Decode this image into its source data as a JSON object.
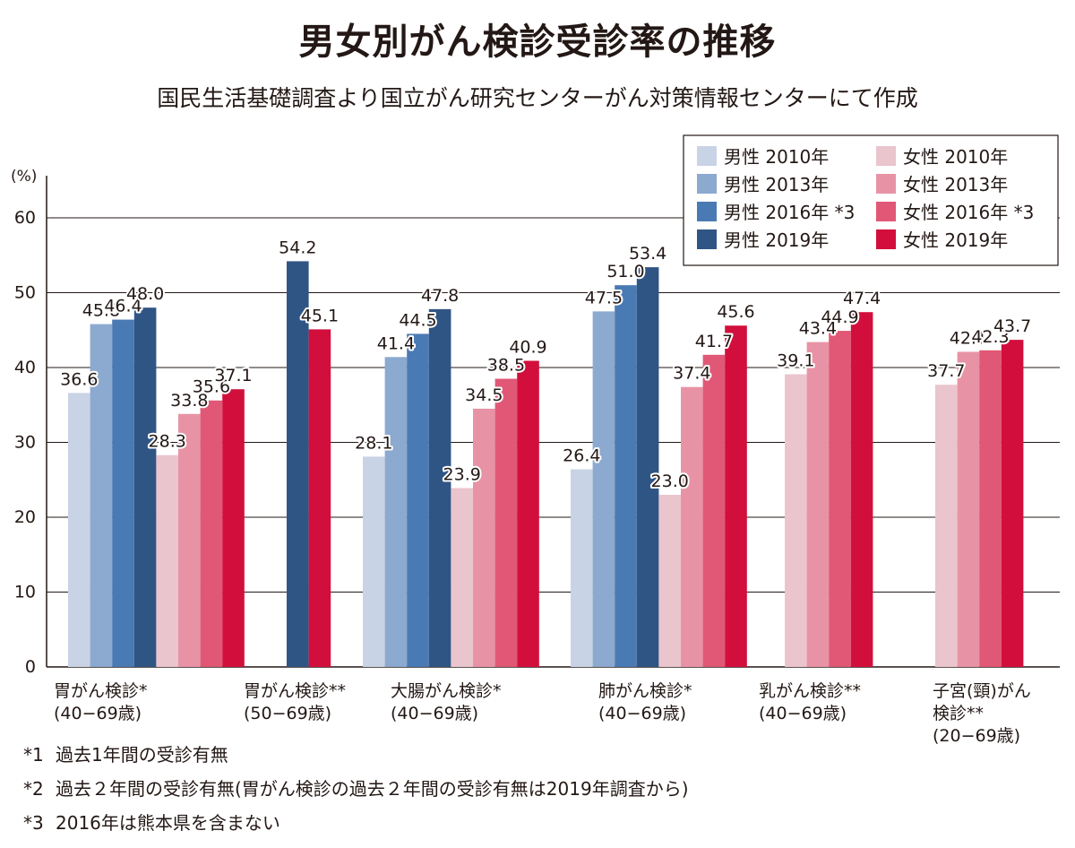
{
  "title": "男女別がん検診受診率の推移",
  "subtitle": "国民生活基礎調査より国立がん研究センターがん対策情報センターにて作成",
  "colors": {
    "male_2010": "#c9d3e6",
    "male_2013": "#8ca9d0",
    "male_2016": "#4a7ab4",
    "male_2019": "#2f5585",
    "female_2010": "#eac5cd",
    "female_2013": "#e893a5",
    "female_2016": "#e05875",
    "female_2019": "#d20f3c",
    "axis": "#231815",
    "grid": "#231815"
  },
  "chart_data": {
    "type": "bar",
    "ylabel": "(%)",
    "ylim": [
      0,
      65
    ],
    "yticks": [
      0,
      10,
      20,
      30,
      40,
      50,
      60
    ],
    "grid": true,
    "legend_position": "top-right",
    "categories": [
      {
        "line1": "胃がん検診*",
        "line2": "(40−69歳)",
        "line3": ""
      },
      {
        "line1": "胃がん検診**",
        "line2": "(50−69歳)",
        "line3": ""
      },
      {
        "line1": "大腸がん検診*",
        "line2": "(40−69歳)",
        "line3": ""
      },
      {
        "line1": "肺がん検診*",
        "line2": "(40−69歳)",
        "line3": ""
      },
      {
        "line1": "乳がん検診**",
        "line2": "(40−69歳)",
        "line3": ""
      },
      {
        "line1": "子宮(頸)がん",
        "line2": "検診**",
        "line3": "(20−69歳)"
      }
    ],
    "series": [
      {
        "name": "男性 2010年",
        "key": "male_2010",
        "values": [
          36.6,
          null,
          28.1,
          26.4,
          null,
          null
        ]
      },
      {
        "name": "男性 2013年",
        "key": "male_2013",
        "values": [
          45.8,
          null,
          41.4,
          47.5,
          null,
          null
        ]
      },
      {
        "name": "男性 2016年 *3",
        "key": "male_2016",
        "values": [
          46.4,
          null,
          44.5,
          51.0,
          null,
          null
        ]
      },
      {
        "name": "男性 2019年",
        "key": "male_2019",
        "values": [
          48.0,
          54.2,
          47.8,
          53.4,
          null,
          null
        ]
      },
      {
        "name": "女性 2010年",
        "key": "female_2010",
        "values": [
          28.3,
          null,
          23.9,
          23.0,
          39.1,
          37.7
        ]
      },
      {
        "name": "女性 2013年",
        "key": "female_2013",
        "values": [
          33.8,
          null,
          34.5,
          37.4,
          43.4,
          42.1
        ]
      },
      {
        "name": "女性 2016年 *3",
        "key": "female_2016",
        "values": [
          35.6,
          null,
          38.5,
          41.7,
          44.9,
          42.3
        ]
      },
      {
        "name": "女性 2019年",
        "key": "female_2019",
        "values": [
          37.1,
          45.1,
          40.9,
          45.6,
          47.4,
          43.7
        ]
      }
    ]
  },
  "footnotes": [
    {
      "mark": "*1",
      "text": "過去1年間の受診有無"
    },
    {
      "mark": "*2",
      "text": "過去２年間の受診有無(胃がん検診の過去２年間の受診有無は2019年調査から)"
    },
    {
      "mark": "*3",
      "text": "2016年は熊本県を含まない"
    }
  ]
}
